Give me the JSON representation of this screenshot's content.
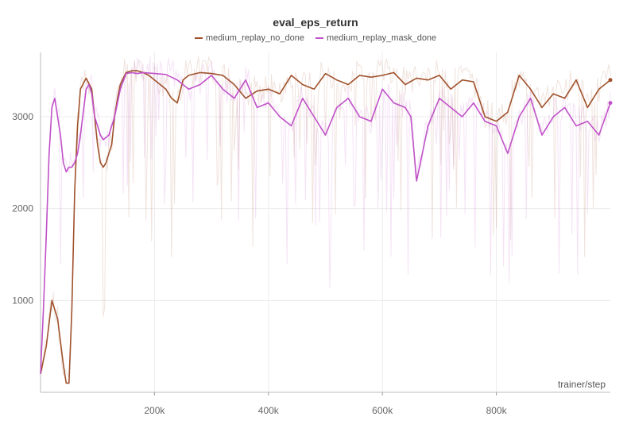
{
  "chart_data": {
    "type": "line",
    "title": "eval_eps_return",
    "xlabel": "trainer/step",
    "ylabel": "",
    "xlim": [
      0,
      1000000
    ],
    "ylim": [
      0,
      3700
    ],
    "x_ticks": [
      200000,
      400000,
      600000,
      800000
    ],
    "x_tick_labels": [
      "200k",
      "400k",
      "600k",
      "800k"
    ],
    "y_ticks": [
      1000,
      2000,
      3000
    ],
    "y_tick_labels": [
      "1000",
      "2000",
      "3000"
    ],
    "grid": true,
    "legend": "top-center",
    "series": [
      {
        "name": "medium_replay_no_done",
        "color": "#a0522d",
        "x": [
          0,
          10000,
          20000,
          30000,
          40000,
          45000,
          50000,
          55000,
          60000,
          65000,
          70000,
          80000,
          90000,
          95000,
          100000,
          105000,
          110000,
          115000,
          120000,
          125000,
          130000,
          135000,
          140000,
          150000,
          160000,
          170000,
          180000,
          190000,
          200000,
          210000,
          220000,
          230000,
          240000,
          250000,
          260000,
          280000,
          300000,
          320000,
          340000,
          360000,
          380000,
          400000,
          420000,
          440000,
          460000,
          480000,
          500000,
          520000,
          540000,
          560000,
          580000,
          600000,
          620000,
          640000,
          660000,
          680000,
          700000,
          720000,
          740000,
          760000,
          780000,
          800000,
          820000,
          840000,
          860000,
          880000,
          900000,
          920000,
          940000,
          960000,
          980000,
          1000000
        ],
        "values": [
          200,
          500,
          1000,
          800,
          300,
          100,
          100,
          900,
          2200,
          2900,
          3300,
          3420,
          3300,
          3000,
          2700,
          2500,
          2450,
          2500,
          2600,
          2700,
          3000,
          3200,
          3350,
          3480,
          3500,
          3500,
          3480,
          3450,
          3400,
          3350,
          3300,
          3200,
          3150,
          3400,
          3450,
          3480,
          3470,
          3450,
          3350,
          3200,
          3280,
          3300,
          3250,
          3450,
          3350,
          3300,
          3470,
          3400,
          3350,
          3450,
          3430,
          3450,
          3480,
          3350,
          3420,
          3400,
          3450,
          3300,
          3400,
          3380,
          3000,
          2950,
          3050,
          3450,
          3300,
          3100,
          3250,
          3200,
          3400,
          3100,
          3300,
          3400
        ]
      },
      {
        "name": "medium_replay_mask_done",
        "color": "#c052c8",
        "x": [
          0,
          5000,
          10000,
          15000,
          20000,
          25000,
          30000,
          35000,
          40000,
          45000,
          50000,
          55000,
          60000,
          65000,
          70000,
          75000,
          80000,
          85000,
          90000,
          95000,
          100000,
          105000,
          110000,
          120000,
          130000,
          140000,
          150000,
          160000,
          170000,
          180000,
          200000,
          220000,
          240000,
          260000,
          280000,
          300000,
          320000,
          340000,
          360000,
          380000,
          400000,
          420000,
          440000,
          460000,
          480000,
          500000,
          520000,
          540000,
          560000,
          580000,
          600000,
          620000,
          640000,
          650000,
          660000,
          680000,
          700000,
          720000,
          740000,
          760000,
          780000,
          800000,
          820000,
          840000,
          860000,
          880000,
          900000,
          920000,
          940000,
          960000,
          980000,
          1000000
        ],
        "values": [
          200,
          900,
          1700,
          2600,
          3100,
          3200,
          3000,
          2800,
          2500,
          2400,
          2450,
          2450,
          2500,
          2600,
          2800,
          3050,
          3300,
          3350,
          3250,
          3000,
          2900,
          2800,
          2750,
          2800,
          3000,
          3300,
          3470,
          3480,
          3470,
          3480,
          3470,
          3460,
          3400,
          3300,
          3350,
          3450,
          3300,
          3200,
          3400,
          3100,
          3150,
          3000,
          2900,
          3200,
          3000,
          2800,
          3100,
          3200,
          3000,
          2950,
          3300,
          3150,
          3100,
          3000,
          2300,
          2900,
          3200,
          3100,
          3000,
          3150,
          2950,
          2900,
          2600,
          3000,
          3200,
          2800,
          3000,
          3100,
          2900,
          2950,
          2800,
          3150
        ]
      }
    ]
  }
}
